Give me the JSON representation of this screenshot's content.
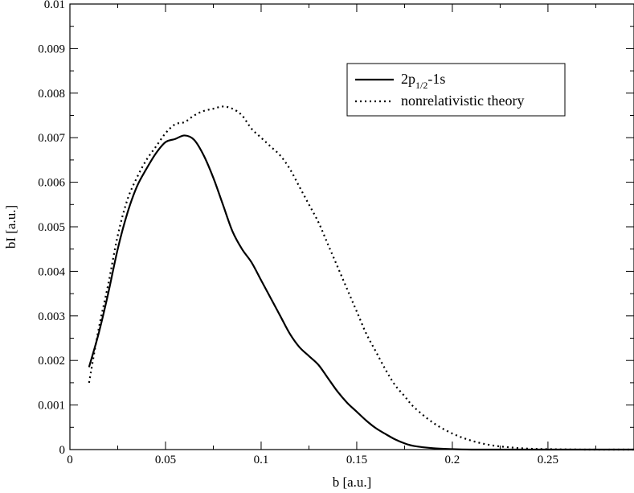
{
  "chart_data": {
    "type": "line",
    "title": "",
    "xlabel": "b [a.u.]",
    "ylabel": "bI [a.u.]",
    "xlim": [
      0,
      0.295
    ],
    "ylim": [
      0,
      0.01
    ],
    "x_ticks": [
      0,
      0.05,
      0.1,
      0.15,
      0.2,
      0.25
    ],
    "x_tick_labels": [
      "0",
      "0.05",
      "0.1",
      "0.15",
      "0.2",
      "0.25"
    ],
    "y_ticks": [
      0,
      0.001,
      0.002,
      0.003,
      0.004,
      0.005,
      0.006,
      0.007,
      0.008,
      0.009,
      0.01
    ],
    "y_tick_labels": [
      "0",
      "0.001",
      "0.002",
      "0.003",
      "0.004",
      "0.005",
      "0.006",
      "0.007",
      "0.008",
      "0.009",
      "0.01"
    ],
    "grid": false,
    "legend_position": "top-right",
    "series": [
      {
        "name": "2p1/2-1s",
        "legend_main": "2p",
        "legend_sub": "1/2",
        "legend_tail": "-1s",
        "style": "solid",
        "x": [
          0.01,
          0.015,
          0.02,
          0.025,
          0.03,
          0.035,
          0.04,
          0.045,
          0.05,
          0.055,
          0.06,
          0.065,
          0.07,
          0.075,
          0.08,
          0.085,
          0.09,
          0.095,
          0.1,
          0.105,
          0.11,
          0.115,
          0.12,
          0.125,
          0.13,
          0.135,
          0.14,
          0.145,
          0.15,
          0.155,
          0.16,
          0.165,
          0.17,
          0.175,
          0.18,
          0.19,
          0.2,
          0.21,
          0.22,
          0.23,
          0.25,
          0.27,
          0.295
        ],
        "y": [
          0.00185,
          0.0026,
          0.0035,
          0.0045,
          0.0053,
          0.0059,
          0.0063,
          0.00665,
          0.0069,
          0.00697,
          0.00705,
          0.00695,
          0.0066,
          0.0061,
          0.0055,
          0.0049,
          0.0045,
          0.0042,
          0.0038,
          0.0034,
          0.003,
          0.0026,
          0.0023,
          0.0021,
          0.0019,
          0.0016,
          0.0013,
          0.00105,
          0.00085,
          0.00065,
          0.00048,
          0.00035,
          0.00023,
          0.00014,
          8e-05,
          3e-05,
          1e-05,
          0.0,
          0.0,
          0.0,
          0.0,
          0.0,
          0.0
        ]
      },
      {
        "name": "nonrelativistic theory",
        "style": "dotted",
        "x": [
          0.01,
          0.015,
          0.02,
          0.025,
          0.03,
          0.035,
          0.04,
          0.045,
          0.05,
          0.055,
          0.06,
          0.065,
          0.07,
          0.075,
          0.08,
          0.085,
          0.09,
          0.095,
          0.1,
          0.105,
          0.11,
          0.115,
          0.12,
          0.125,
          0.13,
          0.135,
          0.14,
          0.145,
          0.15,
          0.155,
          0.16,
          0.165,
          0.17,
          0.175,
          0.18,
          0.19,
          0.2,
          0.21,
          0.22,
          0.23,
          0.24,
          0.25,
          0.27,
          0.295
        ],
        "y": [
          0.0015,
          0.0027,
          0.0037,
          0.0048,
          0.0056,
          0.0061,
          0.0065,
          0.0068,
          0.0071,
          0.0073,
          0.00735,
          0.0075,
          0.0076,
          0.00765,
          0.0077,
          0.00765,
          0.0075,
          0.0072,
          0.007,
          0.0068,
          0.0066,
          0.0063,
          0.0059,
          0.0055,
          0.0051,
          0.0046,
          0.0041,
          0.0036,
          0.0031,
          0.0026,
          0.0022,
          0.0018,
          0.00145,
          0.0012,
          0.00095,
          0.0006,
          0.00036,
          0.0002,
          0.0001,
          5e-05,
          2e-05,
          1e-05,
          0.0,
          0.0
        ]
      }
    ]
  }
}
